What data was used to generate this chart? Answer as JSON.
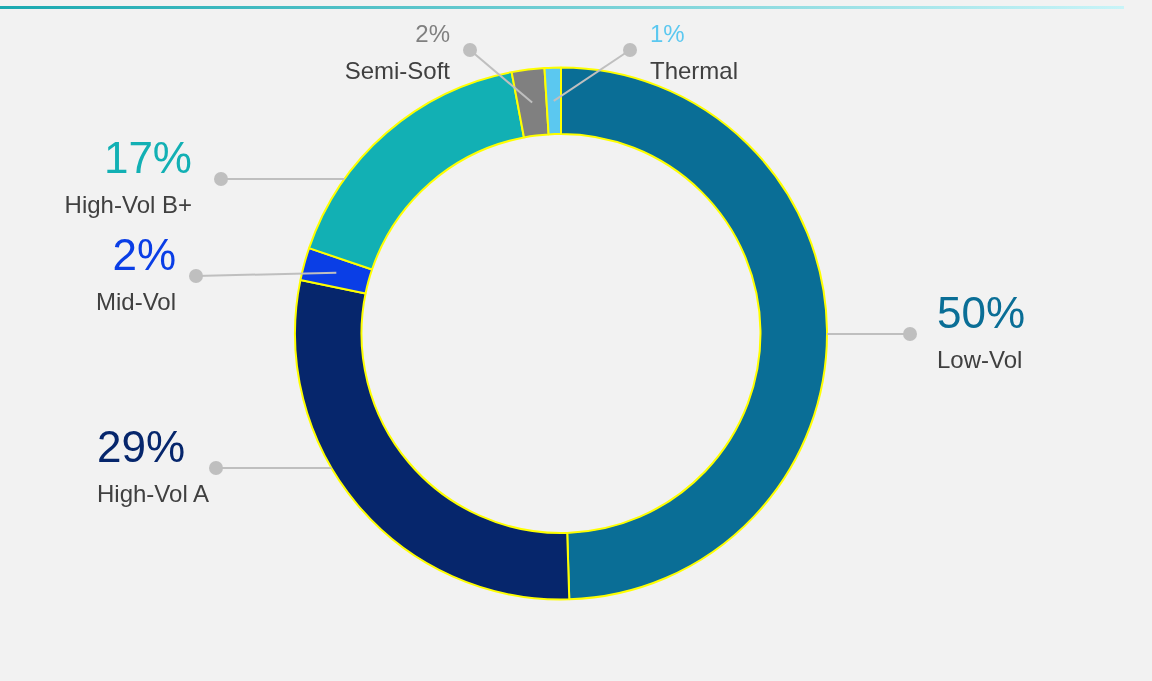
{
  "chart_data": {
    "type": "donut",
    "categories": [
      "Low-Vol",
      "High-Vol A",
      "Mid-Vol",
      "High-Vol B+",
      "Semi-Soft",
      "Thermal"
    ],
    "values": [
      50,
      29,
      2,
      17,
      2,
      1
    ],
    "value_labels": [
      "50%",
      "29%",
      "2%",
      "17%",
      "2%",
      "1%"
    ],
    "colors": [
      "#0a6e96",
      "#06266c",
      "#0a3ee6",
      "#12b0b4",
      "#808080",
      "#5bc8f0"
    ],
    "legend": false
  }
}
